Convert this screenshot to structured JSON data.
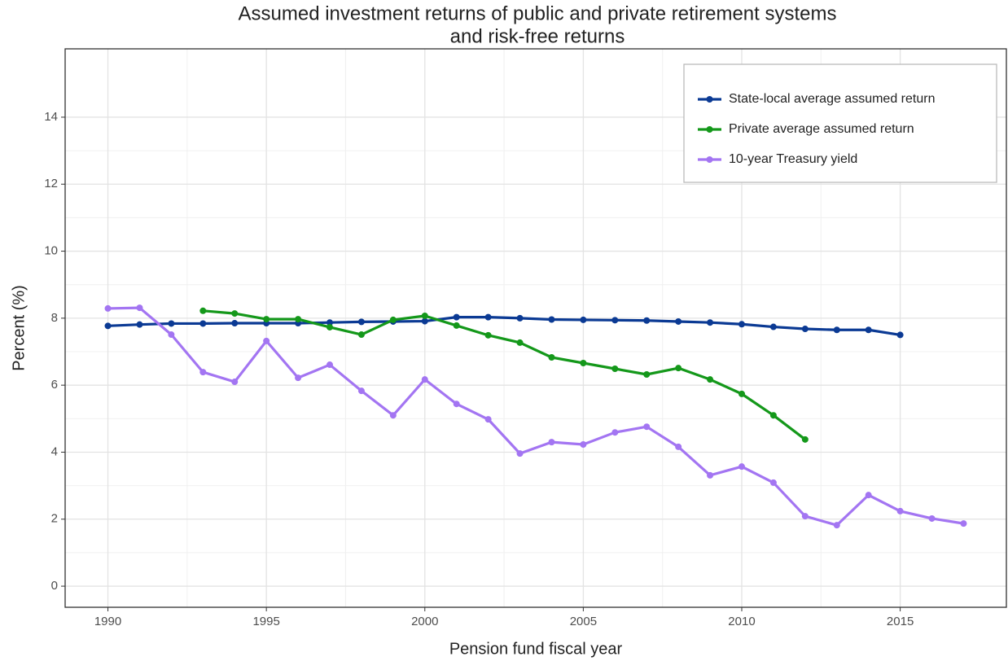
{
  "chart_data": {
    "type": "line",
    "title": [
      "Assumed investment returns of public and private retirement systems",
      "and risk-free returns"
    ],
    "x_label": "Pension fund fiscal year",
    "y_label": "Percent (%)",
    "x": [
      1990,
      1991,
      1992,
      1993,
      1994,
      1995,
      1996,
      1997,
      1998,
      1999,
      2000,
      2001,
      2002,
      2003,
      2004,
      2005,
      2006,
      2007,
      2008,
      2009,
      2010,
      2011,
      2012,
      2013,
      2014,
      2015,
      2016,
      2017
    ],
    "series": [
      {
        "name": "State-local average assumed return",
        "color": "#0b3a94",
        "values": [
          7.77,
          7.81,
          7.84,
          7.84,
          7.85,
          7.85,
          7.85,
          7.87,
          7.89,
          7.9,
          7.91,
          8.03,
          8.03,
          8.0,
          7.96,
          7.95,
          7.94,
          7.93,
          7.9,
          7.87,
          7.82,
          7.74,
          7.68,
          7.65,
          7.65,
          7.5,
          null,
          null
        ]
      },
      {
        "name": "Private average assumed return",
        "color": "#14981a",
        "values": [
          null,
          null,
          null,
          8.22,
          8.14,
          7.97,
          7.97,
          7.73,
          7.51,
          7.95,
          8.07,
          7.78,
          7.49,
          7.27,
          6.83,
          6.66,
          6.49,
          6.32,
          6.51,
          6.17,
          5.74,
          5.1,
          4.38,
          null,
          null,
          null,
          null,
          null
        ]
      },
      {
        "name": "10-year Treasury yield",
        "color": "#a375f2",
        "values": [
          8.29,
          8.31,
          7.51,
          6.39,
          6.1,
          7.32,
          6.22,
          6.61,
          5.83,
          5.1,
          6.17,
          5.44,
          4.98,
          3.96,
          4.3,
          4.23,
          4.59,
          4.76,
          4.16,
          3.31,
          3.57,
          3.09,
          2.09,
          1.82,
          2.72,
          2.24,
          2.02,
          1.87
        ]
      }
    ],
    "xlim": [
      1988.65,
      2018.35
    ],
    "xticks": [
      1990,
      1995,
      2000,
      2005,
      2010,
      2015
    ],
    "ylim": [
      -0.63,
      16.04
    ],
    "yticks": [
      0,
      2,
      4,
      6,
      8,
      10,
      12,
      14
    ],
    "grid": true,
    "legend_position": "top-right"
  }
}
